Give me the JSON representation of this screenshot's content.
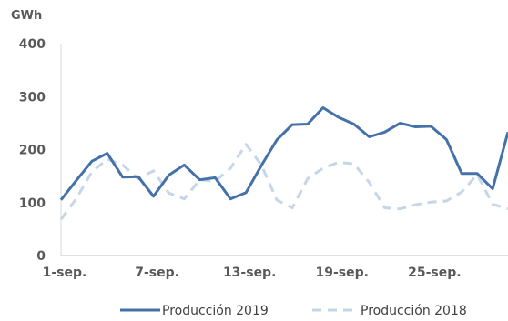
{
  "chart_data": {
    "type": "line",
    "unit_label": "GWh",
    "x_tick_labels": [
      "1-sep.",
      "7-sep.",
      "13-sep.",
      "19-sep.",
      "25-sep."
    ],
    "x_tick_days": [
      1,
      7,
      13,
      19,
      25
    ],
    "x": [
      1,
      2,
      3,
      4,
      5,
      6,
      7,
      8,
      9,
      10,
      11,
      12,
      13,
      14,
      15,
      16,
      17,
      18,
      19,
      20,
      21,
      22,
      23,
      24,
      25,
      26,
      27,
      28,
      29,
      30
    ],
    "xlim": [
      1,
      30
    ],
    "ylim": [
      0,
      400
    ],
    "y_ticks": [
      0,
      100,
      200,
      300,
      400
    ],
    "grid": false,
    "legend_position": "bottom",
    "series": [
      {
        "name": "Producción 2019",
        "color": "#4472a8",
        "dash": "solid",
        "values": [
          105,
          142,
          178,
          193,
          148,
          149,
          112,
          152,
          171,
          143,
          147,
          107,
          119,
          170,
          218,
          247,
          248,
          279,
          261,
          248,
          224,
          233,
          250,
          243,
          244,
          219,
          155,
          155,
          126,
          233
        ]
      },
      {
        "name": "Producción 2018",
        "color": "#c6d6e9",
        "dash": "dashed",
        "values": [
          68,
          108,
          158,
          182,
          171,
          145,
          160,
          118,
          107,
          143,
          140,
          165,
          210,
          171,
          105,
          90,
          145,
          165,
          176,
          173,
          138,
          90,
          88,
          96,
          101,
          103,
          120,
          153,
          97,
          88
        ]
      }
    ]
  }
}
